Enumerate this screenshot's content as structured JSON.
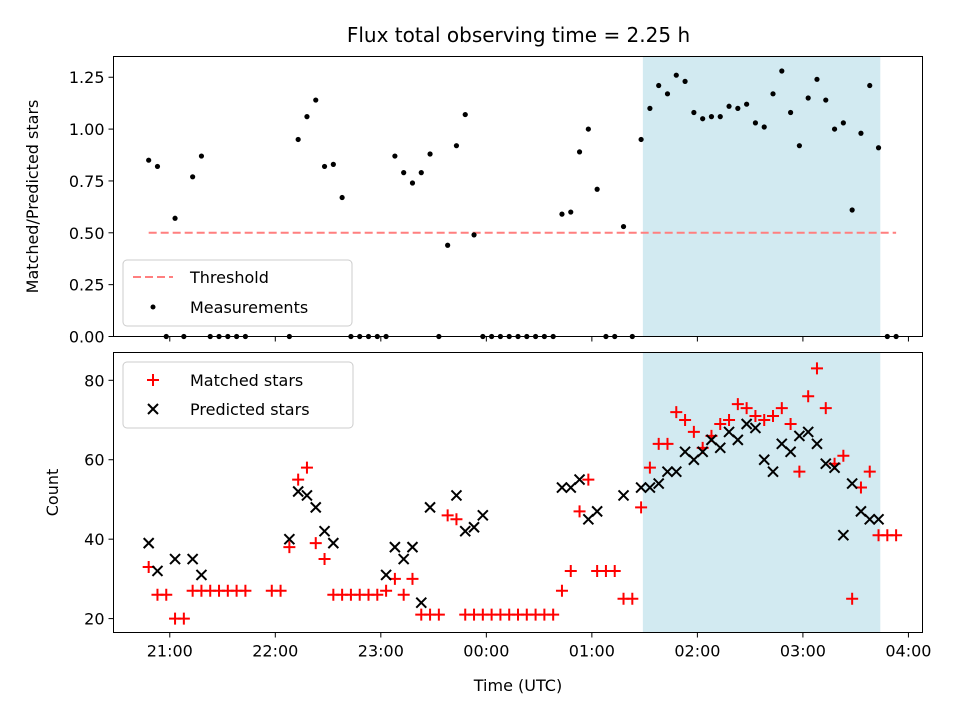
{
  "title": "Flux total observing time = 2.25 h",
  "colors": {
    "threshold": "#ff7f7f",
    "measurement": "#000000",
    "matched": "#ff0000",
    "predicted": "#000000",
    "span": "#add8e6"
  },
  "chart_data": [
    {
      "type": "scatter",
      "panel": "top",
      "ylabel": "Matched/Predicted stars",
      "ylim": [
        0.0,
        1.35
      ],
      "yticks": [
        0.0,
        0.25,
        0.5,
        0.75,
        1.0,
        1.25
      ],
      "ytick_labels": [
        "0.00",
        "0.25",
        "0.50",
        "0.75",
        "1.00",
        "1.25"
      ],
      "xlim": [
        "20:28",
        "04:08"
      ],
      "xticks": [
        "21:00",
        "22:00",
        "23:00",
        "00:00",
        "01:00",
        "02:00",
        "03:00",
        "04:00"
      ],
      "shaded_span": [
        "01:29",
        "03:44"
      ],
      "threshold": {
        "name": "Threshold",
        "y": 0.5,
        "x_range": [
          "20:48",
          "03:53"
        ]
      },
      "series": [
        {
          "name": "Measurements",
          "x": [
            "20:48",
            "20:53",
            "20:58",
            "21:03",
            "21:08",
            "21:13",
            "21:18",
            "21:23",
            "21:28",
            "21:33",
            "21:38",
            "21:43",
            "22:08",
            "22:13",
            "22:18",
            "22:23",
            "22:28",
            "22:33",
            "22:38",
            "22:43",
            "22:48",
            "22:53",
            "22:58",
            "23:03",
            "23:08",
            "23:13",
            "23:18",
            "23:23",
            "23:28",
            "23:33",
            "23:38",
            "23:43",
            "23:48",
            "23:53",
            "23:58",
            "00:03",
            "00:08",
            "00:13",
            "00:18",
            "00:23",
            "00:28",
            "00:33",
            "00:38",
            "00:43",
            "00:48",
            "00:53",
            "00:58",
            "01:03",
            "01:08",
            "01:13",
            "01:18",
            "01:23",
            "01:28",
            "01:33",
            "01:38",
            "01:43",
            "01:48",
            "01:53",
            "01:58",
            "02:03",
            "02:08",
            "02:13",
            "02:18",
            "02:23",
            "02:28",
            "02:33",
            "02:38",
            "02:43",
            "02:48",
            "02:53",
            "02:58",
            "03:03",
            "03:08",
            "03:13",
            "03:18",
            "03:23",
            "03:28",
            "03:33",
            "03:38",
            "03:43",
            "03:48",
            "03:53"
          ],
          "y": [
            0.85,
            0.82,
            0.0,
            0.57,
            0.0,
            0.77,
            0.87,
            0.0,
            0.0,
            0.0,
            0.0,
            0.0,
            0.0,
            0.95,
            1.06,
            1.14,
            0.82,
            0.83,
            0.67,
            0.0,
            0.0,
            0.0,
            0.0,
            0.0,
            0.87,
            0.79,
            0.74,
            0.79,
            0.88,
            0.0,
            0.44,
            0.92,
            1.07,
            0.49,
            0.0,
            0.0,
            0.0,
            0.0,
            0.0,
            0.0,
            0.0,
            0.0,
            0.0,
            0.59,
            0.6,
            0.89,
            1.0,
            0.71,
            0.0,
            0.0,
            0.53,
            0.0,
            0.95,
            1.1,
            1.21,
            1.17,
            1.26,
            1.23,
            1.08,
            1.05,
            1.06,
            1.06,
            1.11,
            1.1,
            1.12,
            1.03,
            1.01,
            1.17,
            1.28,
            1.08,
            0.92,
            1.15,
            1.24,
            1.14,
            1.0,
            1.03,
            0.61,
            0.98,
            1.21,
            0.91,
            0.0,
            0.0
          ]
        }
      ],
      "legend": {
        "position": "lower left",
        "entries": [
          "Threshold",
          "Measurements"
        ]
      }
    },
    {
      "type": "scatter",
      "panel": "bottom",
      "ylabel": "Count",
      "xlabel": "Time (UTC)",
      "ylim": [
        16.5,
        87
      ],
      "yticks": [
        20,
        40,
        60,
        80
      ],
      "ytick_labels": [
        "20",
        "40",
        "60",
        "80"
      ],
      "xlim": [
        "20:28",
        "04:08"
      ],
      "xticks": [
        "21:00",
        "22:00",
        "23:00",
        "00:00",
        "01:00",
        "02:00",
        "03:00",
        "04:00"
      ],
      "shaded_span": [
        "01:29",
        "03:44"
      ],
      "series": [
        {
          "name": "Matched stars",
          "marker": "+",
          "x": [
            "20:48",
            "20:53",
            "20:58",
            "21:03",
            "21:08",
            "21:13",
            "21:18",
            "21:23",
            "21:28",
            "21:33",
            "21:38",
            "21:43",
            "21:58",
            "22:03",
            "22:08",
            "22:13",
            "22:18",
            "22:23",
            "22:28",
            "22:33",
            "22:38",
            "22:43",
            "22:48",
            "22:53",
            "22:58",
            "23:03",
            "23:08",
            "23:13",
            "23:18",
            "23:23",
            "23:28",
            "23:33",
            "23:38",
            "23:43",
            "23:48",
            "23:53",
            "23:58",
            "00:03",
            "00:08",
            "00:13",
            "00:18",
            "00:23",
            "00:28",
            "00:33",
            "00:38",
            "00:43",
            "00:48",
            "00:53",
            "00:58",
            "01:03",
            "01:08",
            "01:13",
            "01:18",
            "01:23",
            "01:28",
            "01:33",
            "01:38",
            "01:43",
            "01:48",
            "01:53",
            "01:58",
            "02:03",
            "02:08",
            "02:13",
            "02:18",
            "02:23",
            "02:28",
            "02:33",
            "02:38",
            "02:43",
            "02:48",
            "02:53",
            "02:58",
            "03:03",
            "03:08",
            "03:13",
            "03:18",
            "03:23",
            "03:28",
            "03:33",
            "03:38",
            "03:43",
            "03:48",
            "03:53"
          ],
          "y": [
            33,
            26,
            26,
            20,
            20,
            27,
            27,
            27,
            27,
            27,
            27,
            27,
            27,
            27,
            38,
            55,
            58,
            39,
            35,
            26,
            26,
            26,
            26,
            26,
            26,
            27,
            30,
            26,
            30,
            21,
            21,
            21,
            46,
            45,
            21,
            21,
            21,
            21,
            21,
            21,
            21,
            21,
            21,
            21,
            21,
            27,
            32,
            47,
            55,
            32,
            32,
            32,
            25,
            25,
            48,
            58,
            64,
            64,
            72,
            70,
            67,
            63,
            66,
            69,
            70,
            74,
            73,
            71,
            70,
            71,
            73,
            69,
            57,
            76,
            83,
            73,
            59,
            61,
            25,
            53,
            57,
            41,
            41,
            41
          ]
        },
        {
          "name": "Predicted stars",
          "marker": "x",
          "x": [
            "20:48",
            "20:53",
            "21:03",
            "21:13",
            "21:18",
            "22:08",
            "22:13",
            "22:18",
            "22:23",
            "22:28",
            "22:33",
            "23:03",
            "23:08",
            "23:13",
            "23:18",
            "23:23",
            "23:28",
            "23:43",
            "23:48",
            "23:53",
            "23:58",
            "00:43",
            "00:48",
            "00:53",
            "00:58",
            "01:03",
            "01:18",
            "01:28",
            "01:33",
            "01:38",
            "01:43",
            "01:48",
            "01:53",
            "01:58",
            "02:03",
            "02:08",
            "02:13",
            "02:18",
            "02:23",
            "02:28",
            "02:33",
            "02:38",
            "02:43",
            "02:48",
            "02:53",
            "02:58",
            "03:03",
            "03:08",
            "03:13",
            "03:18",
            "03:23",
            "03:28",
            "03:33",
            "03:38",
            "03:43"
          ],
          "y": [
            39,
            32,
            35,
            35,
            31,
            40,
            52,
            51,
            48,
            42,
            39,
            31,
            38,
            35,
            38,
            24,
            48,
            51,
            42,
            43,
            46,
            53,
            53,
            55,
            45,
            47,
            51,
            53,
            53,
            54,
            57,
            57,
            62,
            60,
            62,
            65,
            63,
            67,
            65,
            69,
            68,
            60,
            57,
            64,
            62,
            66,
            67,
            64,
            59,
            58,
            41,
            54,
            47,
            45,
            45
          ]
        }
      ],
      "legend": {
        "position": "upper left",
        "entries": [
          "Matched stars",
          "Predicted stars"
        ]
      }
    }
  ]
}
